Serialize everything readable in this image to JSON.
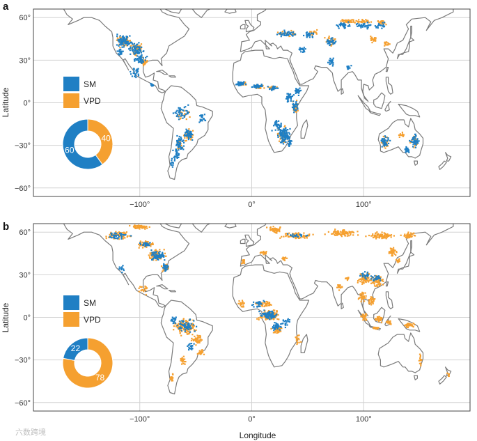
{
  "colors": {
    "SM": "#1f7fc4",
    "VPD": "#f5a030",
    "land_outline": "#7a7a7a",
    "grid": "#d2d2d2",
    "frame": "#444444"
  },
  "axes": {
    "x_title": "Longitude",
    "y_title": "Latitude",
    "lat_ticks": [
      "60°",
      "30°",
      "0°",
      "−30°",
      "−60°"
    ],
    "lon_ticks": [
      "−100°",
      "0°",
      "100°"
    ]
  },
  "panels": [
    {
      "letter": "a",
      "legend": [
        {
          "key": "SM",
          "label": "SM"
        },
        {
          "key": "VPD",
          "label": "VPD"
        }
      ],
      "donut": {
        "SM": 60,
        "VPD": 40,
        "SM_label": "60",
        "VPD_label": "40"
      }
    },
    {
      "letter": "b",
      "legend": [
        {
          "key": "SM",
          "label": "SM"
        },
        {
          "key": "VPD",
          "label": "VPD"
        }
      ],
      "donut": {
        "SM": 22,
        "VPD": 78,
        "SM_label": "22",
        "VPD_label": "78"
      }
    }
  ],
  "watermark": "六数跨境"
}
